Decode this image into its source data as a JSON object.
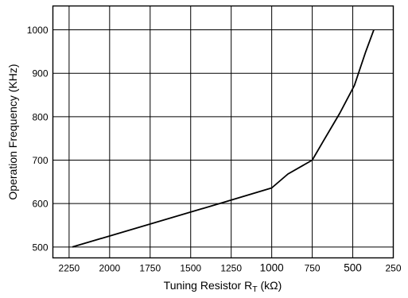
{
  "chart_data": {
    "type": "line",
    "title": "",
    "xlabel": "Tuning Resistor R",
    "xlabel_sub": "T",
    "xlabel_unit": " (kΩ)",
    "ylabel": "Operation Frequency (KHz)",
    "x_reversed": true,
    "xlim": [
      2350,
      250
    ],
    "ylim": [
      475,
      1055
    ],
    "grid": true,
    "x_ticks": [
      {
        "value": 2250,
        "label": "2250",
        "big": false
      },
      {
        "value": 2000,
        "label": "2000",
        "big": false
      },
      {
        "value": 1750,
        "label": "1750",
        "big": false
      },
      {
        "value": 1500,
        "label": "1500",
        "big": false
      },
      {
        "value": 1250,
        "label": "1250",
        "big": false
      },
      {
        "value": 1000,
        "label": "1000",
        "big": true
      },
      {
        "value": 750,
        "label": "750",
        "big": false
      },
      {
        "value": 500,
        "label": "500",
        "big": true
      },
      {
        "value": 250,
        "label": "250",
        "big": false
      }
    ],
    "y_ticks": [
      {
        "value": 500,
        "label": "500"
      },
      {
        "value": 600,
        "label": "600"
      },
      {
        "value": 700,
        "label": "700"
      },
      {
        "value": 800,
        "label": "800"
      },
      {
        "value": 900,
        "label": "900"
      },
      {
        "value": 1000,
        "label": "1000"
      }
    ],
    "series": [
      {
        "color": "#000000",
        "points": [
          {
            "x": 2230,
            "y": 500
          },
          {
            "x": 1250,
            "y": 608
          },
          {
            "x": 1000,
            "y": 636
          },
          {
            "x": 900,
            "y": 668
          },
          {
            "x": 750,
            "y": 700
          },
          {
            "x": 680,
            "y": 745
          },
          {
            "x": 580,
            "y": 808
          },
          {
            "x": 490,
            "y": 872
          },
          {
            "x": 420,
            "y": 950
          },
          {
            "x": 370,
            "y": 1000
          }
        ]
      }
    ]
  }
}
